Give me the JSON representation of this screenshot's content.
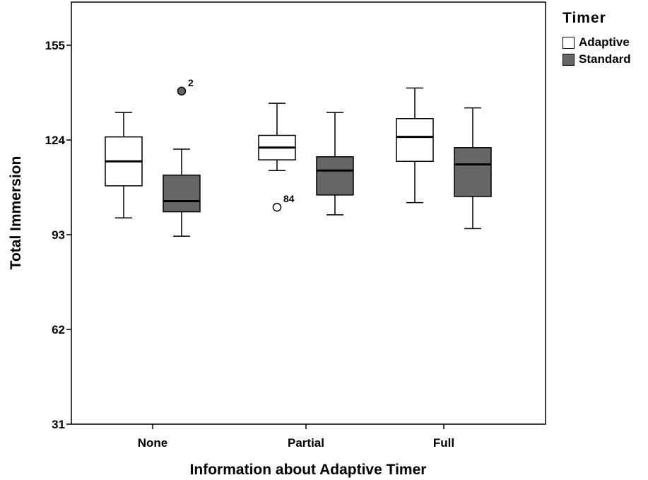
{
  "chart_data": {
    "type": "boxplot",
    "xlabel": "Information about Adaptive Timer",
    "ylabel": "Total Immersion",
    "ylim": [
      31,
      166
    ],
    "yticks": [
      31,
      62,
      93,
      124,
      155
    ],
    "categories": [
      "None",
      "Partial",
      "Full"
    ],
    "legend": {
      "title": "Timer",
      "position": "top-right"
    },
    "series": [
      {
        "name": "Adaptive",
        "color": "#ffffff",
        "boxes": [
          {
            "category": "None",
            "whisker_low": 98.5,
            "q1": 109,
            "median": 117,
            "q3": 125,
            "whisker_high": 133,
            "outliers": []
          },
          {
            "category": "Partial",
            "whisker_low": 114,
            "q1": 117.5,
            "median": 121.5,
            "q3": 125.5,
            "whisker_high": 136,
            "outliers": [
              {
                "value": 102,
                "label": "84"
              }
            ]
          },
          {
            "category": "Full",
            "whisker_low": 103.5,
            "q1": 117,
            "median": 125,
            "q3": 131,
            "whisker_high": 141,
            "outliers": []
          }
        ]
      },
      {
        "name": "Standard",
        "color": "#666666",
        "boxes": [
          {
            "category": "None",
            "whisker_low": 92.5,
            "q1": 100.5,
            "median": 104,
            "q3": 112.5,
            "whisker_high": 121,
            "outliers": [
              {
                "value": 140,
                "label": "2"
              }
            ]
          },
          {
            "category": "Partial",
            "whisker_low": 99.5,
            "q1": 106,
            "median": 114,
            "q3": 118.5,
            "whisker_high": 133,
            "outliers": []
          },
          {
            "category": "Full",
            "whisker_low": 95,
            "q1": 105.5,
            "median": 116,
            "q3": 121.5,
            "whisker_high": 134.5,
            "outliers": []
          }
        ]
      }
    ]
  }
}
